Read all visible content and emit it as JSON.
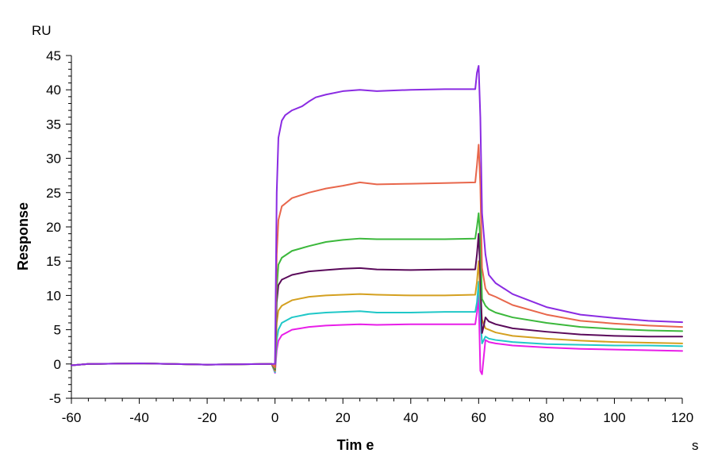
{
  "chart_data": {
    "type": "line",
    "title": "",
    "xlabel": "Tim e",
    "ylabel": "Response",
    "x_unit": "s",
    "y_unit": "RU",
    "xlim": [
      -60,
      120
    ],
    "ylim": [
      -5,
      45
    ],
    "x_ticks": [
      "-60",
      "-40",
      "-20",
      "0",
      "20",
      "40",
      "60",
      "80",
      "100",
      "120"
    ],
    "y_ticks": [
      "-5",
      "0",
      "5",
      "10",
      "15",
      "20",
      "25",
      "30",
      "35",
      "40",
      "45"
    ],
    "grid": false,
    "legend": "none",
    "series": [
      {
        "color": "#8a2be2",
        "points": [
          [
            -60,
            -0.2
          ],
          [
            -55,
            0
          ],
          [
            -40,
            0.1
          ],
          [
            -20,
            -0.1
          ],
          [
            -2,
            0
          ],
          [
            -1,
            0
          ],
          [
            0,
            0
          ],
          [
            0.5,
            25
          ],
          [
            1,
            33
          ],
          [
            2,
            35.5
          ],
          [
            3,
            36.3
          ],
          [
            5,
            37
          ],
          [
            8,
            37.6
          ],
          [
            10,
            38.3
          ],
          [
            12,
            38.9
          ],
          [
            15,
            39.3
          ],
          [
            20,
            39.8
          ],
          [
            25,
            40
          ],
          [
            30,
            39.8
          ],
          [
            35,
            39.9
          ],
          [
            40,
            40
          ],
          [
            50,
            40.1
          ],
          [
            59,
            40.1
          ],
          [
            59.5,
            42.5
          ],
          [
            60,
            43.5
          ],
          [
            60.5,
            36
          ],
          [
            61,
            22
          ],
          [
            62,
            16
          ],
          [
            63,
            13
          ],
          [
            65,
            11.8
          ],
          [
            70,
            10.2
          ],
          [
            80,
            8.3
          ],
          [
            90,
            7.2
          ],
          [
            100,
            6.7
          ],
          [
            110,
            6.3
          ],
          [
            120,
            6.1
          ]
        ]
      },
      {
        "color": "#e8674c",
        "points": [
          [
            -60,
            -0.2
          ],
          [
            -55,
            0
          ],
          [
            -40,
            0.1
          ],
          [
            -20,
            -0.1
          ],
          [
            -2,
            0
          ],
          [
            -1,
            0
          ],
          [
            0,
            -0.5
          ],
          [
            0.5,
            16
          ],
          [
            1,
            21
          ],
          [
            2,
            23
          ],
          [
            5,
            24.2
          ],
          [
            10,
            25
          ],
          [
            15,
            25.6
          ],
          [
            20,
            26
          ],
          [
            25,
            26.5
          ],
          [
            30,
            26.2
          ],
          [
            40,
            26.3
          ],
          [
            50,
            26.4
          ],
          [
            59,
            26.5
          ],
          [
            59.5,
            29
          ],
          [
            60,
            32
          ],
          [
            60.5,
            26
          ],
          [
            61,
            14
          ],
          [
            62,
            11
          ],
          [
            63,
            10.2
          ],
          [
            65,
            9.8
          ],
          [
            70,
            8.6
          ],
          [
            80,
            7.2
          ],
          [
            90,
            6.3
          ],
          [
            100,
            5.9
          ],
          [
            110,
            5.6
          ],
          [
            120,
            5.4
          ]
        ]
      },
      {
        "color": "#3cb83c",
        "points": [
          [
            -60,
            -0.2
          ],
          [
            -55,
            0
          ],
          [
            -40,
            0.1
          ],
          [
            -20,
            -0.1
          ],
          [
            -2,
            0
          ],
          [
            -1,
            0
          ],
          [
            0,
            -0.7
          ],
          [
            0.5,
            11
          ],
          [
            1,
            14.5
          ],
          [
            2,
            15.5
          ],
          [
            5,
            16.5
          ],
          [
            10,
            17.2
          ],
          [
            15,
            17.8
          ],
          [
            20,
            18.1
          ],
          [
            25,
            18.3
          ],
          [
            30,
            18.2
          ],
          [
            40,
            18.2
          ],
          [
            50,
            18.2
          ],
          [
            59,
            18.3
          ],
          [
            59.5,
            20
          ],
          [
            60,
            22
          ],
          [
            60.5,
            18
          ],
          [
            61,
            9.5
          ],
          [
            62,
            8.5
          ],
          [
            63,
            8
          ],
          [
            65,
            7.5
          ],
          [
            70,
            6.8
          ],
          [
            80,
            6
          ],
          [
            90,
            5.4
          ],
          [
            100,
            5.1
          ],
          [
            110,
            4.9
          ],
          [
            120,
            4.8
          ]
        ]
      },
      {
        "color": "#5a0a5a",
        "points": [
          [
            -60,
            -0.2
          ],
          [
            -55,
            0
          ],
          [
            -40,
            0.1
          ],
          [
            -20,
            -0.1
          ],
          [
            -2,
            0
          ],
          [
            -1,
            0
          ],
          [
            0,
            -0.8
          ],
          [
            0.5,
            9
          ],
          [
            1,
            11.5
          ],
          [
            2,
            12.3
          ],
          [
            5,
            13
          ],
          [
            10,
            13.5
          ],
          [
            15,
            13.7
          ],
          [
            20,
            13.9
          ],
          [
            25,
            14
          ],
          [
            30,
            13.8
          ],
          [
            40,
            13.7
          ],
          [
            50,
            13.8
          ],
          [
            59,
            13.8
          ],
          [
            59.5,
            16
          ],
          [
            60,
            19
          ],
          [
            60.5,
            13
          ],
          [
            61,
            4.5
          ],
          [
            61.5,
            5.5
          ],
          [
            62,
            6.8
          ],
          [
            63,
            6.2
          ],
          [
            65,
            5.8
          ],
          [
            70,
            5.2
          ],
          [
            80,
            4.7
          ],
          [
            90,
            4.3
          ],
          [
            100,
            4.1
          ],
          [
            110,
            4
          ],
          [
            120,
            4
          ]
        ]
      },
      {
        "color": "#d4a020",
        "points": [
          [
            -60,
            -0.2
          ],
          [
            -55,
            0
          ],
          [
            -40,
            0.1
          ],
          [
            -20,
            -0.1
          ],
          [
            -2,
            0
          ],
          [
            -1,
            0
          ],
          [
            0,
            -1
          ],
          [
            0.5,
            6
          ],
          [
            1,
            7.8
          ],
          [
            2,
            8.5
          ],
          [
            5,
            9.3
          ],
          [
            10,
            9.8
          ],
          [
            15,
            10
          ],
          [
            20,
            10.1
          ],
          [
            25,
            10.2
          ],
          [
            30,
            10.1
          ],
          [
            40,
            10
          ],
          [
            50,
            10
          ],
          [
            59,
            10.1
          ],
          [
            59.5,
            12
          ],
          [
            60,
            15
          ],
          [
            60.5,
            10
          ],
          [
            61,
            6.5
          ],
          [
            62,
            5.2
          ],
          [
            63,
            5
          ],
          [
            65,
            4.6
          ],
          [
            70,
            4.1
          ],
          [
            80,
            3.7
          ],
          [
            90,
            3.4
          ],
          [
            100,
            3.2
          ],
          [
            110,
            3.1
          ],
          [
            120,
            3
          ]
        ]
      },
      {
        "color": "#20c8c8",
        "points": [
          [
            -60,
            -0.2
          ],
          [
            -55,
            0
          ],
          [
            -40,
            0.1
          ],
          [
            -20,
            -0.1
          ],
          [
            -2,
            0
          ],
          [
            -1,
            0
          ],
          [
            0,
            -1.2
          ],
          [
            0.5,
            3.5
          ],
          [
            1,
            5
          ],
          [
            2,
            6
          ],
          [
            5,
            6.8
          ],
          [
            10,
            7.3
          ],
          [
            15,
            7.5
          ],
          [
            20,
            7.6
          ],
          [
            25,
            7.7
          ],
          [
            30,
            7.5
          ],
          [
            40,
            7.5
          ],
          [
            50,
            7.6
          ],
          [
            59,
            7.6
          ],
          [
            59.5,
            9
          ],
          [
            60,
            12
          ],
          [
            60.5,
            7
          ],
          [
            61,
            3
          ],
          [
            62,
            4
          ],
          [
            63,
            3.7
          ],
          [
            65,
            3.5
          ],
          [
            70,
            3.2
          ],
          [
            80,
            2.9
          ],
          [
            90,
            2.8
          ],
          [
            100,
            2.7
          ],
          [
            110,
            2.7
          ],
          [
            120,
            2.6
          ]
        ]
      },
      {
        "color": "#e81ee8",
        "points": [
          [
            -60,
            -0.2
          ],
          [
            -55,
            0
          ],
          [
            -40,
            0.1
          ],
          [
            -20,
            -0.1
          ],
          [
            -2,
            0
          ],
          [
            -1,
            0
          ],
          [
            0,
            -1.3
          ],
          [
            0.5,
            2
          ],
          [
            1,
            3.4
          ],
          [
            2,
            4.2
          ],
          [
            5,
            5
          ],
          [
            10,
            5.4
          ],
          [
            15,
            5.6
          ],
          [
            20,
            5.7
          ],
          [
            25,
            5.8
          ],
          [
            30,
            5.7
          ],
          [
            40,
            5.8
          ],
          [
            50,
            5.8
          ],
          [
            59,
            5.8
          ],
          [
            59.5,
            7.5
          ],
          [
            60,
            10
          ],
          [
            60.5,
            -1
          ],
          [
            61,
            -1.5
          ],
          [
            62,
            3.5
          ],
          [
            63,
            3.2
          ],
          [
            65,
            3
          ],
          [
            70,
            2.7
          ],
          [
            80,
            2.4
          ],
          [
            90,
            2.2
          ],
          [
            100,
            2.1
          ],
          [
            110,
            2
          ],
          [
            120,
            1.9
          ]
        ]
      }
    ]
  }
}
